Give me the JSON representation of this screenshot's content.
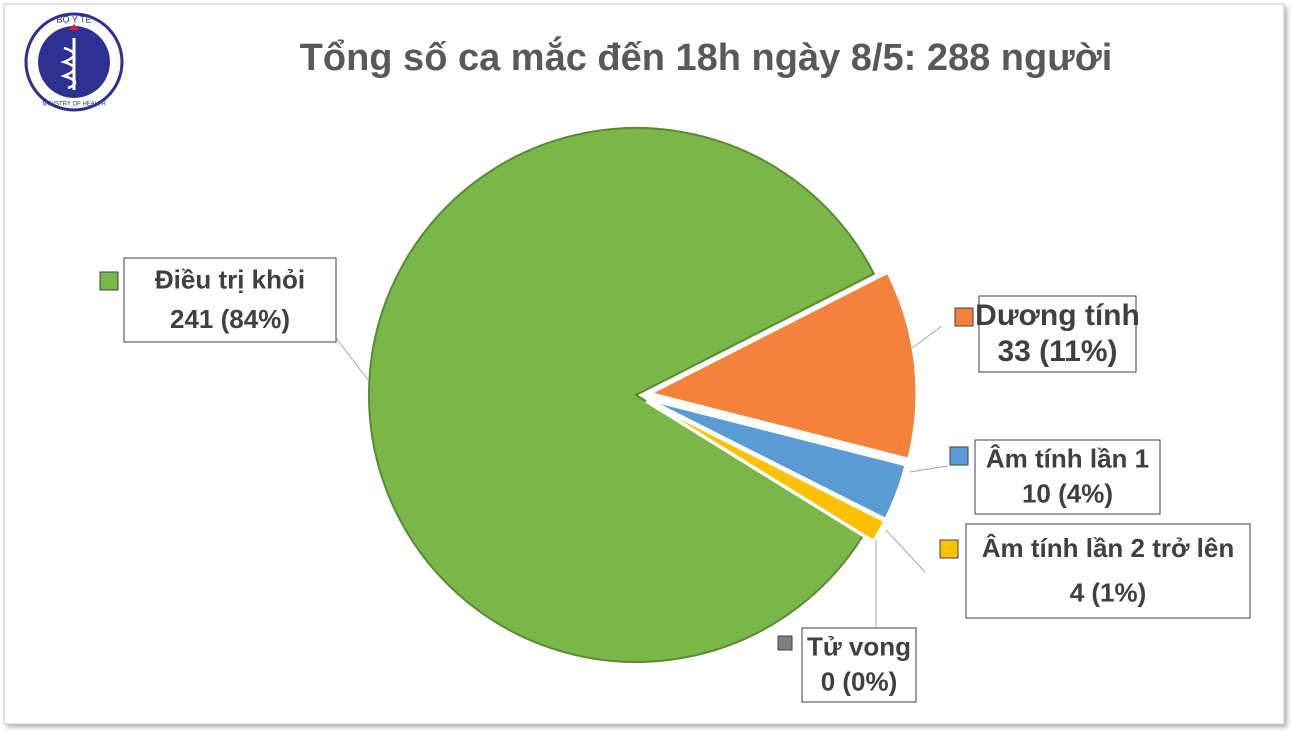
{
  "logo": {
    "top": "BỘ Y TẾ",
    "bottom": "MINISTRY OF HEALTH"
  },
  "chart_data": {
    "type": "pie",
    "title": "Tổng số ca mắc đến 18h ngày 8/5: 288 người",
    "categories": [
      "Điều trị khỏi",
      "Dương tính",
      "Âm tính lần 1",
      "Âm tính lần 2 trở lên",
      "Tử vong"
    ],
    "values": [
      241,
      33,
      10,
      4,
      0
    ],
    "value_labels": [
      "241 (84%)",
      "33 (11%)",
      "10 (4%)",
      "4 (1%)",
      "0 (0%)"
    ],
    "colors": [
      "#7ab648",
      "#f5823a",
      "#5b9bd5",
      "#ffc000",
      "#7f7f7f"
    ]
  }
}
